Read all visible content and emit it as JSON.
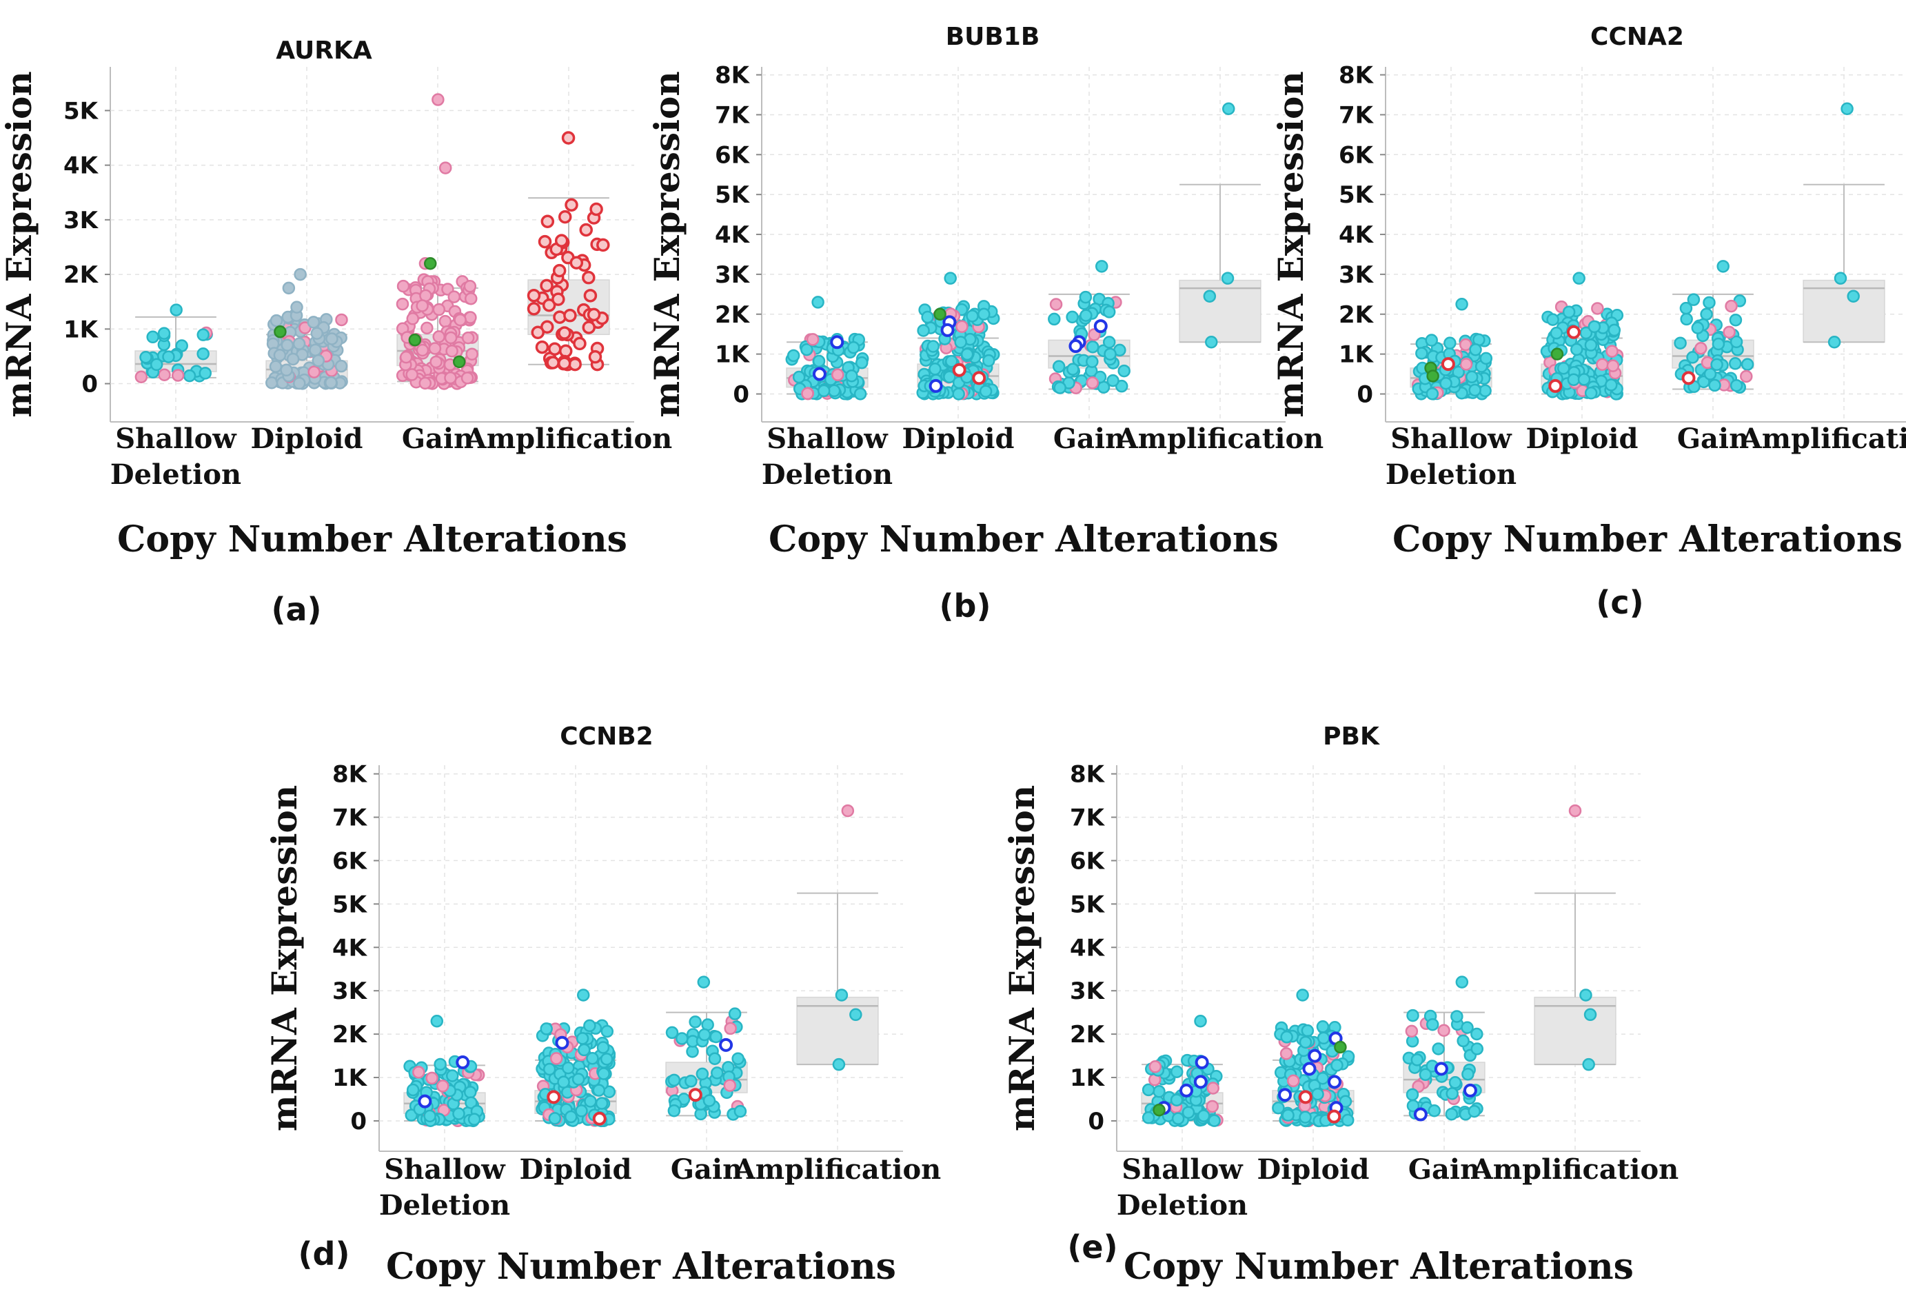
{
  "figure": {
    "panel_letters": [
      "(a)",
      "(b)",
      "(c)",
      "(d)",
      "(e)"
    ]
  },
  "colors": {
    "cyan": "#4fd6e2",
    "cyan_stroke": "#28b5c4",
    "pink": "#f1a8c4",
    "pink_stroke": "#e07aa3",
    "red": "#e0333b",
    "blue": "#2236e6",
    "green": "#3fae3a",
    "gray_dot": "#a9c3d1",
    "box_fill": "#e6e6e6",
    "grid": "#e3e3e3"
  },
  "chart_data": [
    {
      "type": "scatter",
      "title": "AURKA",
      "letter": "(a)",
      "xlabel": "Copy Number Alterations",
      "ylabel": "mRNA Expression",
      "ylim": [
        -700,
        5800
      ],
      "ticks": [
        0,
        1000,
        2000,
        3000,
        4000,
        5000
      ],
      "tick_labels": [
        "0",
        "1K",
        "2K",
        "3K",
        "4K",
        "5K"
      ],
      "categories": [
        [
          "Shallow",
          "Deletion"
        ],
        [
          "Diploid"
        ],
        [
          "Gain"
        ],
        [
          "Amplification"
        ]
      ],
      "boxes": [
        {
          "q1": 220,
          "median": 360,
          "q3": 600,
          "low": 110,
          "high": 1220
        },
        {
          "q1": 90,
          "median": 260,
          "q3": 420,
          "low": 0,
          "high": 900
        },
        {
          "q1": 330,
          "median": 600,
          "q3": 900,
          "low": 40,
          "high": 1750
        },
        {
          "q1": 900,
          "median": 1250,
          "q3": 1900,
          "low": 350,
          "high": 3400
        }
      ],
      "groups": [
        {
          "n": 28,
          "base": "cyan",
          "spread": [
            120,
            1000
          ],
          "extra": [
            1350
          ]
        },
        {
          "n": 120,
          "base": "gray_dot",
          "spread": [
            0,
            1300
          ],
          "extra": [
            2000,
            1750,
            1400
          ],
          "accents": [
            {
              "c": "green",
              "y": 950
            }
          ]
        },
        {
          "n": 140,
          "base": "pink",
          "spread": [
            0,
            2000
          ],
          "extra": [
            5200,
            3950,
            2200
          ],
          "accents": [
            {
              "c": "green",
              "y": 2200
            },
            {
              "c": "green",
              "y": 400
            },
            {
              "c": "green",
              "y": 800
            }
          ]
        },
        {
          "n": 60,
          "base": "red_open",
          "spread": [
            350,
            3300
          ],
          "extra": [
            4500
          ]
        }
      ]
    },
    {
      "type": "scatter",
      "title": "BUB1B",
      "letter": "(b)",
      "xlabel": "Copy Number Alterations",
      "ylabel": "mRNA Expression",
      "ylim": [
        -700,
        8200
      ],
      "ticks": [
        0,
        1000,
        2000,
        3000,
        4000,
        5000,
        6000,
        7000,
        8000
      ],
      "tick_labels": [
        "0",
        "1K",
        "2K",
        "3K",
        "4K",
        "5K",
        "6K",
        "7K",
        "8K"
      ],
      "categories": [
        [
          "Shallow",
          "Deletion"
        ],
        [
          "Diploid"
        ],
        [
          "Gain"
        ],
        [
          "Amplification"
        ]
      ],
      "boxes": [
        {
          "q1": 170,
          "median": 400,
          "q3": 650,
          "low": 0,
          "high": 1300
        },
        {
          "q1": 170,
          "median": 450,
          "q3": 750,
          "low": 0,
          "high": 1400
        },
        {
          "q1": 650,
          "median": 950,
          "q3": 1350,
          "low": 120,
          "high": 2500
        },
        {
          "q1": 1300,
          "median": 2650,
          "q3": 2850,
          "low": 1300,
          "high": 5250
        }
      ],
      "groups": [
        {
          "n": 90,
          "base": "cyan",
          "spread": [
            0,
            1400
          ],
          "extra": [
            2300
          ],
          "accents": [
            {
              "c": "blue",
              "y": 1300
            },
            {
              "c": "blue",
              "y": 500
            }
          ]
        },
        {
          "n": 150,
          "base": "cyan",
          "spread": [
            0,
            2200
          ],
          "extra": [
            2900
          ],
          "accents": [
            {
              "c": "blue",
              "y": 1800
            },
            {
              "c": "blue",
              "y": 1600
            },
            {
              "c": "red",
              "y": 600
            },
            {
              "c": "red",
              "y": 400
            },
            {
              "c": "blue",
              "y": 200
            },
            {
              "c": "green",
              "y": 2000
            }
          ]
        },
        {
          "n": 55,
          "base": "cyan",
          "spread": [
            150,
            2500
          ],
          "extra": [
            3200
          ],
          "accents": [
            {
              "c": "blue",
              "y": 1300
            },
            {
              "c": "blue",
              "y": 1700
            },
            {
              "c": "blue",
              "y": 1200
            }
          ]
        },
        {
          "n": 0,
          "base": "cyan",
          "spread": [
            0,
            0
          ],
          "extra": [
            7150,
            2900,
            2450,
            1300
          ]
        }
      ]
    },
    {
      "type": "scatter",
      "title": "CCNA2",
      "letter": "(c)",
      "xlabel": "Copy Number Alterations",
      "ylabel": "mRNA Expression",
      "ylim": [
        -700,
        8200
      ],
      "ticks": [
        0,
        1000,
        2000,
        3000,
        4000,
        5000,
        6000,
        7000,
        8000
      ],
      "tick_labels": [
        "0",
        "1K",
        "2K",
        "3K",
        "4K",
        "5K",
        "6K",
        "7K",
        "8K"
      ],
      "categories": [
        [
          "Shallow",
          "Deletion"
        ],
        [
          "Diploid"
        ],
        [
          "Gain"
        ],
        [
          "Amplification"
        ]
      ],
      "boxes": [
        {
          "q1": 170,
          "median": 400,
          "q3": 650,
          "low": 0,
          "high": 1250
        },
        {
          "q1": 170,
          "median": 450,
          "q3": 750,
          "low": 0,
          "high": 1400
        },
        {
          "q1": 650,
          "median": 950,
          "q3": 1350,
          "low": 120,
          "high": 2500
        },
        {
          "q1": 1300,
          "median": 2650,
          "q3": 2850,
          "low": 1300,
          "high": 5250
        }
      ],
      "groups": [
        {
          "n": 90,
          "base": "cyan",
          "spread": [
            0,
            1400
          ],
          "extra": [
            2250
          ],
          "accents": [
            {
              "c": "red",
              "y": 750
            },
            {
              "c": "green",
              "y": 650
            },
            {
              "c": "green",
              "y": 450
            }
          ]
        },
        {
          "n": 150,
          "base": "cyan",
          "spread": [
            0,
            2200
          ],
          "extra": [
            2900
          ],
          "accents": [
            {
              "c": "red",
              "y": 1550
            },
            {
              "c": "red",
              "y": 200
            },
            {
              "c": "green",
              "y": 1000
            }
          ]
        },
        {
          "n": 55,
          "base": "cyan",
          "spread": [
            150,
            2500
          ],
          "extra": [
            3200
          ],
          "accents": [
            {
              "c": "red",
              "y": 400
            }
          ]
        },
        {
          "n": 0,
          "base": "cyan",
          "spread": [
            0,
            0
          ],
          "extra": [
            7150,
            2900,
            2450,
            1300
          ]
        }
      ]
    },
    {
      "type": "scatter",
      "title": "CCNB2",
      "letter": "(d)",
      "xlabel": "Copy Number Alterations",
      "ylabel": "mRNA Expression",
      "ylim": [
        -700,
        8200
      ],
      "ticks": [
        0,
        1000,
        2000,
        3000,
        4000,
        5000,
        6000,
        7000,
        8000
      ],
      "tick_labels": [
        "0",
        "1K",
        "2K",
        "3K",
        "4K",
        "5K",
        "6K",
        "7K",
        "8K"
      ],
      "categories": [
        [
          "Shallow",
          "Deletion"
        ],
        [
          "Diploid"
        ],
        [
          "Gain"
        ],
        [
          "Amplification"
        ]
      ],
      "boxes": [
        {
          "q1": 170,
          "median": 400,
          "q3": 650,
          "low": 0,
          "high": 1280
        },
        {
          "q1": 170,
          "median": 450,
          "q3": 700,
          "low": 0,
          "high": 1400
        },
        {
          "q1": 650,
          "median": 950,
          "q3": 1350,
          "low": 120,
          "high": 2500
        },
        {
          "q1": 1300,
          "median": 2650,
          "q3": 2850,
          "low": 1300,
          "high": 5250
        }
      ],
      "groups": [
        {
          "n": 90,
          "base": "cyan",
          "spread": [
            0,
            1400
          ],
          "extra": [
            2300
          ],
          "accents": [
            {
              "c": "blue",
              "y": 1350
            },
            {
              "c": "blue",
              "y": 450
            }
          ]
        },
        {
          "n": 150,
          "base": "cyan",
          "spread": [
            0,
            2200
          ],
          "extra": [
            2900
          ],
          "accents": [
            {
              "c": "blue",
              "y": 1800
            },
            {
              "c": "red",
              "y": 550
            },
            {
              "c": "red",
              "y": 50
            }
          ]
        },
        {
          "n": 55,
          "base": "cyan",
          "spread": [
            150,
            2500
          ],
          "extra": [
            3200
          ],
          "accents": [
            {
              "c": "blue",
              "y": 1750
            },
            {
              "c": "red",
              "y": 600
            }
          ]
        },
        {
          "n": 0,
          "base": "cyan",
          "spread": [
            0,
            0
          ],
          "extra": [
            7150,
            2900,
            2450,
            1300
          ],
          "pink_top": true
        }
      ]
    },
    {
      "type": "scatter",
      "title": "PBK",
      "letter": "(e)",
      "xlabel": "Copy Number Alterations",
      "ylabel": "mRNA Expression",
      "ylim": [
        -700,
        8200
      ],
      "ticks": [
        0,
        1000,
        2000,
        3000,
        4000,
        5000,
        6000,
        7000,
        8000
      ],
      "tick_labels": [
        "0",
        "1K",
        "2K",
        "3K",
        "4K",
        "5K",
        "6K",
        "7K",
        "8K"
      ],
      "categories": [
        [
          "Shallow",
          "Deletion"
        ],
        [
          "Diploid"
        ],
        [
          "Gain"
        ],
        [
          "Amplification"
        ]
      ],
      "boxes": [
        {
          "q1": 170,
          "median": 400,
          "q3": 650,
          "low": 0,
          "high": 1300
        },
        {
          "q1": 170,
          "median": 450,
          "q3": 700,
          "low": 0,
          "high": 1400
        },
        {
          "q1": 650,
          "median": 950,
          "q3": 1350,
          "low": 120,
          "high": 2500
        },
        {
          "q1": 1300,
          "median": 2650,
          "q3": 2850,
          "low": 1300,
          "high": 5250
        }
      ],
      "groups": [
        {
          "n": 80,
          "base": "cyan",
          "spread": [
            0,
            1400
          ],
          "extra": [
            2300
          ],
          "accents": [
            {
              "c": "blue",
              "y": 1350
            },
            {
              "c": "blue",
              "y": 900
            },
            {
              "c": "blue",
              "y": 700
            },
            {
              "c": "blue",
              "y": 300
            },
            {
              "c": "green",
              "y": 250
            }
          ]
        },
        {
          "n": 150,
          "base": "cyan",
          "spread": [
            0,
            2200
          ],
          "extra": [
            2900
          ],
          "accents": [
            {
              "c": "blue",
              "y": 1900
            },
            {
              "c": "blue",
              "y": 1500
            },
            {
              "c": "blue",
              "y": 1200
            },
            {
              "c": "blue",
              "y": 900
            },
            {
              "c": "blue",
              "y": 600
            },
            {
              "c": "blue",
              "y": 300
            },
            {
              "c": "red",
              "y": 550
            },
            {
              "c": "red",
              "y": 100
            },
            {
              "c": "green",
              "y": 1700
            }
          ]
        },
        {
          "n": 55,
          "base": "cyan",
          "spread": [
            150,
            2500
          ],
          "extra": [
            3200
          ],
          "accents": [
            {
              "c": "blue",
              "y": 1200
            },
            {
              "c": "blue",
              "y": 700
            },
            {
              "c": "blue",
              "y": 150
            }
          ]
        },
        {
          "n": 0,
          "base": "cyan",
          "spread": [
            0,
            0
          ],
          "extra": [
            2900,
            2450,
            1300
          ],
          "pink_extra": [
            7150
          ]
        }
      ]
    }
  ]
}
